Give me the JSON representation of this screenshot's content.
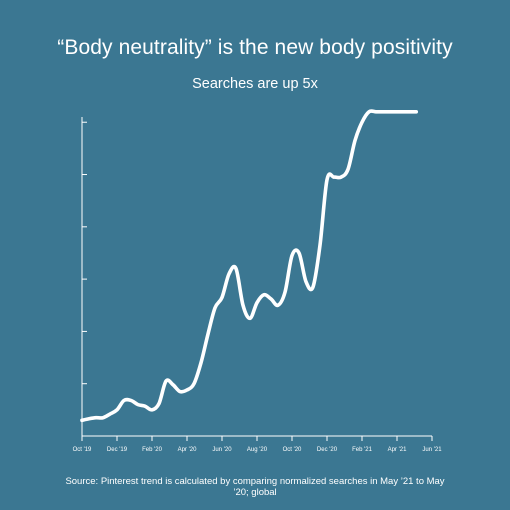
{
  "title": "“Body neutrality” is the new body positivity",
  "subtitle": "Searches are up 5x",
  "source": "Source: Pinterest trend is calculated by comparing normalized searches in May ’21 to May ’20; global",
  "colors": {
    "background": "#3b7792",
    "line": "#ffffff",
    "text": "#ffffff"
  },
  "chart_data": {
    "type": "line",
    "title": "“Body neutrality” is the new body positivity",
    "subtitle": "Searches are up 5x",
    "xlabel": "",
    "ylabel": "",
    "x_ticks": [
      "Oct '19",
      "Dec '19",
      "Feb '20",
      "Apr '20",
      "Jun '20",
      "Aug '20",
      "Oct '20",
      "Dec '20",
      "Feb '21",
      "Apr '21",
      "Jun '21"
    ],
    "y_ticks": [
      0,
      1,
      2,
      3,
      4,
      5,
      6
    ],
    "y_tick_labels_shown": false,
    "ylim": [
      0,
      6.1
    ],
    "xlim": [
      0,
      20
    ],
    "grid": false,
    "legend": "none",
    "series": [
      {
        "x": [
          0,
          0.4,
          0.8,
          1.2,
          1.6,
          2.0,
          2.4,
          2.8,
          3.2,
          3.6,
          4.0,
          4.4,
          4.8,
          5.2,
          5.6,
          6.0,
          6.4,
          6.8,
          7.2,
          7.6,
          8.0,
          8.4,
          8.8,
          9.2,
          9.6,
          10.0,
          10.4,
          10.8,
          11.2,
          11.6,
          12.0,
          12.4,
          12.8,
          13.2,
          13.6,
          14.0,
          14.4,
          14.8,
          15.2,
          15.6,
          16.0,
          16.4,
          16.8,
          17.2,
          17.6,
          18.0,
          18.4,
          18.8,
          19.1
        ],
        "values": [
          0.3,
          0.33,
          0.35,
          0.35,
          0.42,
          0.5,
          0.68,
          0.68,
          0.6,
          0.57,
          0.5,
          0.62,
          1.05,
          0.98,
          0.85,
          0.88,
          1.0,
          1.4,
          1.95,
          2.45,
          2.65,
          3.1,
          3.2,
          2.5,
          2.25,
          2.55,
          2.7,
          2.62,
          2.5,
          2.75,
          3.45,
          3.5,
          2.95,
          2.85,
          3.65,
          4.9,
          4.95,
          4.95,
          5.1,
          5.65,
          6.0,
          6.2,
          6.2,
          6.2,
          6.2,
          6.2,
          6.2,
          6.2,
          6.2
        ]
      }
    ]
  }
}
